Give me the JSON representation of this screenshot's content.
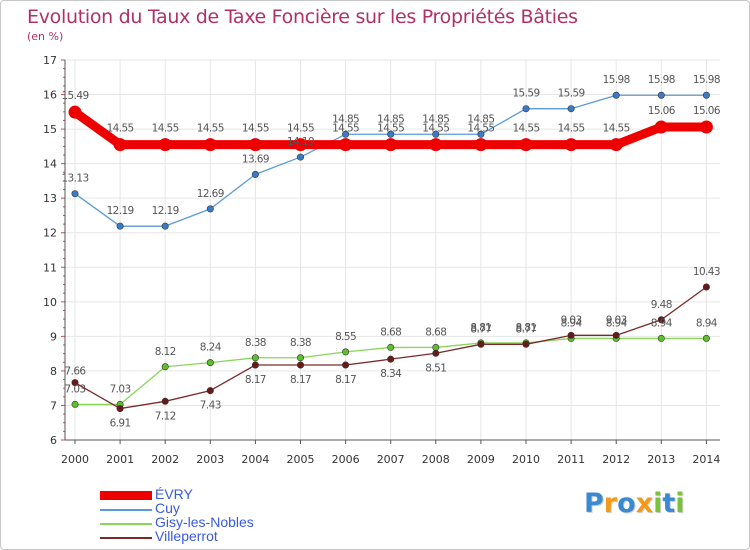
{
  "title": "Evolution du Taux de Taxe Foncière sur les Propriétés Bâties",
  "unit_label": "(en %)",
  "chart_data": {
    "type": "line",
    "title": "Evolution du Taux de Taxe Foncière sur les Propriétés Bâties",
    "ylabel": "(en %)",
    "xlabel": "",
    "ylim": [
      6,
      17
    ],
    "yticks": [
      "6",
      "7",
      "8",
      "9",
      "10",
      "11",
      "12",
      "13",
      "14",
      "15",
      "16",
      "17"
    ],
    "categories": [
      "2000",
      "2001",
      "2002",
      "2003",
      "2004",
      "2005",
      "2006",
      "2007",
      "2008",
      "2009",
      "2010",
      "2011",
      "2012",
      "2013",
      "2014"
    ],
    "series": [
      {
        "name": "Cuy",
        "color": "#5b9bd5",
        "marker_color": "#3a7bc8",
        "values": [
          13.13,
          12.19,
          12.19,
          12.69,
          13.69,
          14.19,
          14.85,
          14.85,
          14.85,
          14.85,
          15.59,
          15.59,
          15.98,
          15.98,
          15.98
        ],
        "labels": [
          "13.13",
          "12.19",
          "12.19",
          "12.69",
          "13.69",
          "14.19",
          "14.85",
          "14.85",
          "14.85",
          "14.85",
          "15.59",
          "15.59",
          "15.98",
          "15.98",
          "15.98"
        ]
      },
      {
        "name": "Gisy-les-Nobles",
        "color": "#8ad65a",
        "marker_color": "#5cc02a",
        "values": [
          7.03,
          7.03,
          8.12,
          8.24,
          8.38,
          8.38,
          8.55,
          8.68,
          8.68,
          8.81,
          8.81,
          8.94,
          8.94,
          8.94,
          8.94
        ],
        "labels": [
          "7.03",
          "7.03",
          "8.12",
          "8.24",
          "8.38",
          "8.38",
          "8.55",
          "8.68",
          "8.68",
          "8.81",
          "8.81",
          "8.94",
          "8.94",
          "8.94",
          "8.94"
        ]
      },
      {
        "name": "Villeperrot",
        "color": "#7a2a2a",
        "marker_color": "#6a1818",
        "values": [
          7.66,
          6.91,
          7.12,
          7.43,
          8.17,
          8.17,
          8.17,
          8.34,
          8.51,
          8.77,
          8.77,
          9.03,
          9.03,
          9.48,
          10.43
        ],
        "labels": [
          "7.66",
          "6.91",
          "7.12",
          "7.43",
          "8.17",
          "8.17",
          "8.17",
          "8.34",
          "8.51",
          "8.77",
          "8.77",
          "9.03",
          "9.03",
          "9.48",
          "10.43"
        ]
      },
      {
        "name": "ÉVRY",
        "color": "#ee0000",
        "marker_color": "#ee0000",
        "values": [
          15.49,
          14.55,
          14.55,
          14.55,
          14.55,
          14.55,
          14.55,
          14.55,
          14.55,
          14.55,
          14.55,
          14.55,
          14.55,
          15.06,
          15.06
        ],
        "labels": [
          "15.49",
          "14.55",
          "14.55",
          "14.55",
          "14.55",
          "14.55",
          "14.55",
          "14.55",
          "14.55",
          "14.55",
          "14.55",
          "14.55",
          "14.55",
          "15.06",
          "15.06"
        ]
      }
    ],
    "legend": {
      "placement": "bottom-left",
      "items": [
        "ÉVRY",
        "Cuy",
        "Gisy-les-Nobles",
        "Villeperrot"
      ]
    }
  },
  "logo": {
    "text": "Proxiti",
    "letters": [
      "P",
      "r",
      "o",
      "x",
      "i",
      "t",
      "i"
    ],
    "colors": [
      "#3a8ad0",
      "#f39a1a",
      "#3a8ad0",
      "#f39a1a",
      "#7ac23a",
      "#3a8ad0",
      "#7ac23a"
    ]
  }
}
